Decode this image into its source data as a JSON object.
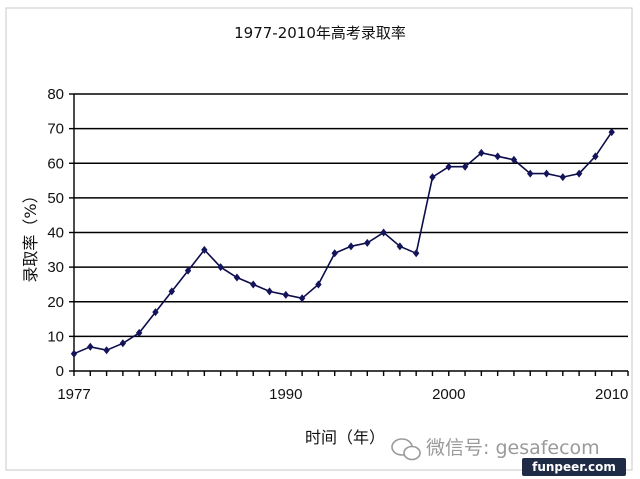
{
  "chart_data": {
    "type": "line",
    "title": "1977-2010年高考录取率",
    "xlabel": "时间（年）",
    "ylabel": "录取率（%）",
    "xlim": [
      1977,
      2011
    ],
    "ylim": [
      0,
      80
    ],
    "yticks": [
      "0",
      "10",
      "20",
      "30",
      "40",
      "50",
      "60",
      "70",
      "80"
    ],
    "xticks": [
      {
        "value": 1977,
        "label": "1977"
      },
      {
        "value": 1990,
        "label": "1990"
      },
      {
        "value": 2000,
        "label": "2000"
      },
      {
        "value": 2010,
        "label": "2010"
      }
    ],
    "grid": true,
    "x": [
      1977,
      1978,
      1979,
      1980,
      1981,
      1982,
      1983,
      1984,
      1985,
      1986,
      1987,
      1988,
      1989,
      1990,
      1991,
      1992,
      1993,
      1994,
      1995,
      1996,
      1997,
      1998,
      1999,
      2000,
      2001,
      2002,
      2003,
      2004,
      2005,
      2006,
      2007,
      2008,
      2009,
      2010
    ],
    "series": [
      {
        "values": [
          5,
          7,
          6,
          8,
          11,
          17,
          23,
          29,
          35,
          30,
          27,
          25,
          23,
          22,
          21,
          25,
          34,
          36,
          37,
          40,
          36,
          34,
          56,
          59,
          59,
          63,
          62,
          61,
          57,
          57,
          56,
          57,
          62,
          69
        ]
      }
    ],
    "line_color": "#0d0d4a"
  },
  "watermark": {
    "wechat_text": "微信号: gesafecom",
    "site_text": "funpeer.com"
  }
}
